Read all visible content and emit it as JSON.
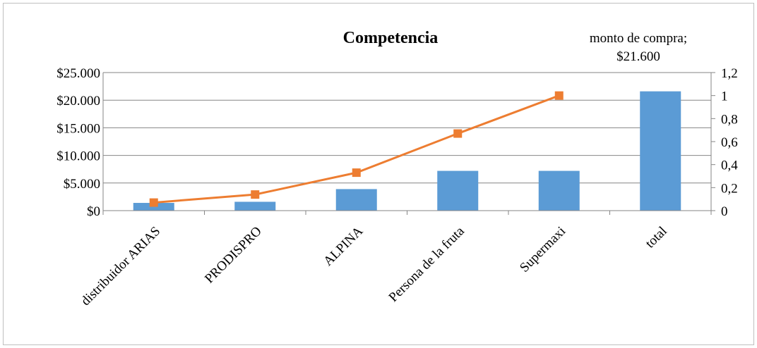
{
  "chart_data": {
    "type": "bar",
    "title": "Competencia",
    "categories": [
      "distribuidor ARIAS",
      "PRODISPRO",
      "ALPINA",
      "Persona de la fruta",
      "Supermaxi",
      "total"
    ],
    "series": [
      {
        "type": "bar",
        "axis": "left",
        "color": "#5b9bd5",
        "values": [
          1400,
          1600,
          3900,
          7200,
          7200,
          21600
        ]
      },
      {
        "type": "line",
        "axis": "right",
        "color": "#ed7d31",
        "marker": "square",
        "values": [
          0.07,
          0.14,
          0.33,
          0.67,
          1.0,
          null
        ]
      }
    ],
    "y_left": {
      "min": 0,
      "max": 25000,
      "step": 5000,
      "tick_labels": [
        "$0",
        "$5.000",
        "$10.000",
        "$15.000",
        "$20.000",
        "$25.000"
      ]
    },
    "y_right": {
      "min": 0,
      "max": 1.2,
      "step": 0.2,
      "tick_labels": [
        "0",
        "0,2",
        "0,4",
        "0,6",
        "0,8",
        "1",
        "1,2"
      ]
    },
    "data_label": {
      "line1": "monto de compra;",
      "line2": "$21.600"
    },
    "grid": true,
    "legend": "none"
  }
}
